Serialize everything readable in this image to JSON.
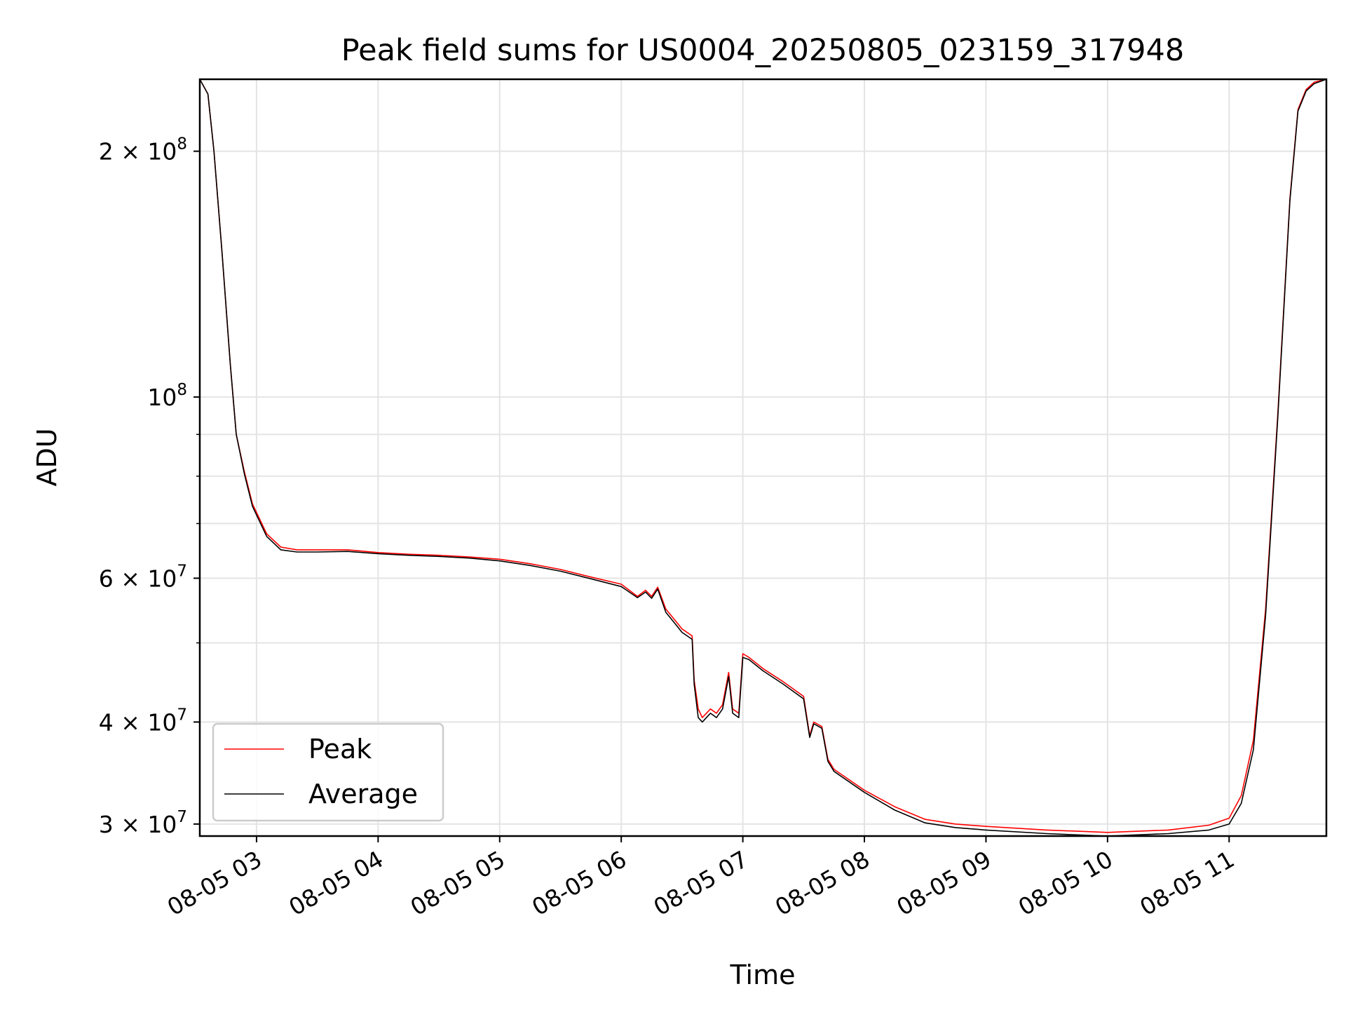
{
  "chart_data": {
    "type": "line",
    "title": "Peak field sums for US0004_20250805_023159_317948",
    "xlabel": "Time",
    "ylabel": "ADU",
    "yscale": "log",
    "grid": true,
    "legend_placement": "lower-left",
    "x_range": [
      "2025-08-05 02:32",
      "2025-08-05 11:48"
    ],
    "ylim": [
      29000000,
      245000000
    ],
    "x_ticks": [
      {
        "value": "2025-08-05 03:00",
        "label": "08-05 03"
      },
      {
        "value": "2025-08-05 04:00",
        "label": "08-05 04"
      },
      {
        "value": "2025-08-05 05:00",
        "label": "08-05 05"
      },
      {
        "value": "2025-08-05 06:00",
        "label": "08-05 06"
      },
      {
        "value": "2025-08-05 07:00",
        "label": "08-05 07"
      },
      {
        "value": "2025-08-05 08:00",
        "label": "08-05 08"
      },
      {
        "value": "2025-08-05 09:00",
        "label": "08-05 09"
      },
      {
        "value": "2025-08-05 10:00",
        "label": "08-05 10"
      },
      {
        "value": "2025-08-05 11:00",
        "label": "08-05 11"
      }
    ],
    "y_ticks": [
      {
        "value": 30000000,
        "base": "3 × 10",
        "exp": "7"
      },
      {
        "value": 40000000,
        "base": "4 × 10",
        "exp": "7"
      },
      {
        "value": 60000000,
        "base": "6 × 10",
        "exp": "7"
      },
      {
        "value": 100000000,
        "base": "10",
        "exp": "8"
      },
      {
        "value": 200000000,
        "base": "2 × 10",
        "exp": "8"
      }
    ],
    "y_minor_ticks": [
      50000000,
      70000000,
      80000000,
      90000000
    ],
    "series": [
      {
        "name": "Peak",
        "color": "#ff0000",
        "x": [
          "2025-08-05 02:32",
          "2025-08-05 02:36",
          "2025-08-05 02:39",
          "2025-08-05 02:43",
          "2025-08-05 02:47",
          "2025-08-05 02:50",
          "2025-08-05 02:54",
          "2025-08-05 02:58",
          "2025-08-05 03:05",
          "2025-08-05 03:12",
          "2025-08-05 03:20",
          "2025-08-05 03:30",
          "2025-08-05 03:45",
          "2025-08-05 04:00",
          "2025-08-05 04:15",
          "2025-08-05 04:30",
          "2025-08-05 04:45",
          "2025-08-05 05:00",
          "2025-08-05 05:15",
          "2025-08-05 05:30",
          "2025-08-05 05:45",
          "2025-08-05 06:00",
          "2025-08-05 06:08",
          "2025-08-05 06:12",
          "2025-08-05 06:15",
          "2025-08-05 06:18",
          "2025-08-05 06:22",
          "2025-08-05 06:26",
          "2025-08-05 06:30",
          "2025-08-05 06:35",
          "2025-08-05 06:36",
          "2025-08-05 06:38",
          "2025-08-05 06:40",
          "2025-08-05 06:44",
          "2025-08-05 06:47",
          "2025-08-05 06:50",
          "2025-08-05 06:53",
          "2025-08-05 06:55",
          "2025-08-05 06:58",
          "2025-08-05 07:00",
          "2025-08-05 07:03",
          "2025-08-05 07:10",
          "2025-08-05 07:20",
          "2025-08-05 07:30",
          "2025-08-05 07:33",
          "2025-08-05 07:35",
          "2025-08-05 07:39",
          "2025-08-05 07:42",
          "2025-08-05 07:45",
          "2025-08-05 08:00",
          "2025-08-05 08:15",
          "2025-08-05 08:30",
          "2025-08-05 08:45",
          "2025-08-05 09:00",
          "2025-08-05 09:30",
          "2025-08-05 10:00",
          "2025-08-05 10:30",
          "2025-08-05 10:50",
          "2025-08-05 11:00",
          "2025-08-05 11:06",
          "2025-08-05 11:12",
          "2025-08-05 11:18",
          "2025-08-05 11:24",
          "2025-08-05 11:30",
          "2025-08-05 11:34",
          "2025-08-05 11:38",
          "2025-08-05 11:42",
          "2025-08-05 11:48"
        ],
        "y": [
          245000000,
          235000000,
          200000000,
          150000000,
          110000000,
          90000000,
          81000000,
          74000000,
          68000000,
          65500000,
          65000000,
          65000000,
          65000000,
          64500000,
          64200000,
          64000000,
          63700000,
          63300000,
          62500000,
          61500000,
          60200000,
          59000000,
          57000000,
          58000000,
          57000000,
          58500000,
          55000000,
          53500000,
          52000000,
          51000000,
          45000000,
          41500000,
          40500000,
          41500000,
          41000000,
          42000000,
          46000000,
          41500000,
          41000000,
          48500000,
          48000000,
          46500000,
          44800000,
          43000000,
          38500000,
          40000000,
          39500000,
          36000000,
          35000000,
          33000000,
          31500000,
          30400000,
          30000000,
          29800000,
          29500000,
          29300000,
          29500000,
          29900000,
          30500000,
          32500000,
          38000000,
          55000000,
          95000000,
          175000000,
          225000000,
          238000000,
          243000000,
          245000000
        ]
      },
      {
        "name": "Average",
        "color": "#000000",
        "x": [
          "2025-08-05 02:32",
          "2025-08-05 02:36",
          "2025-08-05 02:39",
          "2025-08-05 02:43",
          "2025-08-05 02:47",
          "2025-08-05 02:50",
          "2025-08-05 02:54",
          "2025-08-05 02:58",
          "2025-08-05 03:05",
          "2025-08-05 03:12",
          "2025-08-05 03:20",
          "2025-08-05 03:30",
          "2025-08-05 03:45",
          "2025-08-05 04:00",
          "2025-08-05 04:15",
          "2025-08-05 04:30",
          "2025-08-05 04:45",
          "2025-08-05 05:00",
          "2025-08-05 05:15",
          "2025-08-05 05:30",
          "2025-08-05 05:45",
          "2025-08-05 06:00",
          "2025-08-05 06:08",
          "2025-08-05 06:12",
          "2025-08-05 06:15",
          "2025-08-05 06:18",
          "2025-08-05 06:22",
          "2025-08-05 06:26",
          "2025-08-05 06:30",
          "2025-08-05 06:35",
          "2025-08-05 06:36",
          "2025-08-05 06:38",
          "2025-08-05 06:40",
          "2025-08-05 06:44",
          "2025-08-05 06:47",
          "2025-08-05 06:50",
          "2025-08-05 06:53",
          "2025-08-05 06:55",
          "2025-08-05 06:58",
          "2025-08-05 07:00",
          "2025-08-05 07:03",
          "2025-08-05 07:10",
          "2025-08-05 07:20",
          "2025-08-05 07:30",
          "2025-08-05 07:33",
          "2025-08-05 07:35",
          "2025-08-05 07:39",
          "2025-08-05 07:42",
          "2025-08-05 07:45",
          "2025-08-05 08:00",
          "2025-08-05 08:15",
          "2025-08-05 08:30",
          "2025-08-05 08:45",
          "2025-08-05 09:00",
          "2025-08-05 09:30",
          "2025-08-05 10:00",
          "2025-08-05 10:30",
          "2025-08-05 10:50",
          "2025-08-05 11:00",
          "2025-08-05 11:06",
          "2025-08-05 11:12",
          "2025-08-05 11:18",
          "2025-08-05 11:24",
          "2025-08-05 11:30",
          "2025-08-05 11:34",
          "2025-08-05 11:38",
          "2025-08-05 11:42",
          "2025-08-05 11:48"
        ],
        "y": [
          245000000,
          235000000,
          200000000,
          150000000,
          110000000,
          90000000,
          80500000,
          73500000,
          67500000,
          65000000,
          64600000,
          64600000,
          64700000,
          64300000,
          64000000,
          63800000,
          63500000,
          63000000,
          62200000,
          61200000,
          59900000,
          58600000,
          56800000,
          57700000,
          56700000,
          58200000,
          54500000,
          53000000,
          51500000,
          50500000,
          44500000,
          40500000,
          40000000,
          41000000,
          40500000,
          41500000,
          45500000,
          41000000,
          40500000,
          48000000,
          47700000,
          46200000,
          44500000,
          42700000,
          38300000,
          39800000,
          39300000,
          35800000,
          34800000,
          32800000,
          31200000,
          30100000,
          29700000,
          29500000,
          29200000,
          29000000,
          29200000,
          29500000,
          30000000,
          31800000,
          37000000,
          54000000,
          94000000,
          174000000,
          224000000,
          237000000,
          242000000,
          245000000
        ]
      }
    ]
  }
}
